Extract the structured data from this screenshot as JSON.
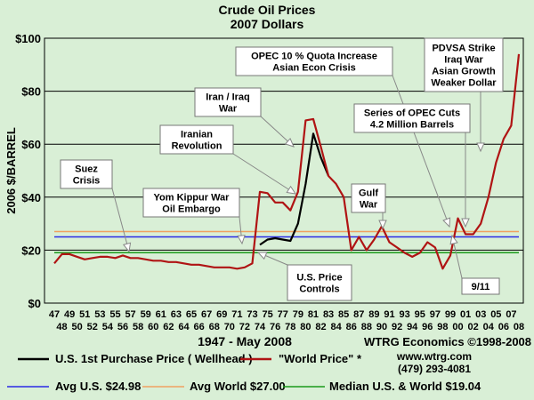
{
  "chart_data": {
    "type": "line",
    "title": "Crude Oil Prices",
    "subtitle": "2007 Dollars",
    "ylabel": "2006 $/BARREL",
    "xlabel": "1947 - May 2008",
    "ylim": [
      0,
      100
    ],
    "xlim": [
      1947,
      2008
    ],
    "grid": true,
    "y_ticks": [
      "$0",
      "$20",
      "$40",
      "$60",
      "$80",
      "$100"
    ],
    "y_tick_values": [
      0,
      20,
      40,
      60,
      80,
      100
    ],
    "x_ticks_top": [
      "47",
      "49",
      "51",
      "53",
      "55",
      "57",
      "59",
      "61",
      "63",
      "65",
      "67",
      "69",
      "71",
      "73",
      "75",
      "77",
      "79",
      "81",
      "83",
      "85",
      "87",
      "89",
      "91",
      "93",
      "95",
      "97",
      "99",
      "01",
      "03",
      "05",
      "07"
    ],
    "x_ticks_bottom": [
      "48",
      "50",
      "52",
      "54",
      "56",
      "58",
      "60",
      "62",
      "64",
      "66",
      "68",
      "70",
      "72",
      "74",
      "76",
      "78",
      "80",
      "82",
      "84",
      "86",
      "88",
      "90",
      "92",
      "94",
      "96",
      "98",
      "00",
      "02",
      "04",
      "06",
      "08"
    ],
    "series": [
      {
        "name": "U.S. 1st Purchase Price ( Wellhead )",
        "color": "#000000",
        "x": [
          1974,
          1975,
          1976,
          1977,
          1978,
          1979,
          1980,
          1981,
          1982,
          1983
        ],
        "y": [
          22,
          24,
          24.5,
          24,
          23.5,
          30,
          45,
          64,
          55,
          48
        ]
      },
      {
        "name": "\"World Price\" *",
        "color": "#b01414",
        "x": [
          1947,
          1948,
          1949,
          1950,
          1951,
          1952,
          1953,
          1954,
          1955,
          1956,
          1957,
          1958,
          1959,
          1960,
          1961,
          1962,
          1963,
          1964,
          1965,
          1966,
          1967,
          1968,
          1969,
          1970,
          1971,
          1972,
          1973,
          1974,
          1975,
          1976,
          1977,
          1978,
          1979,
          1980,
          1981,
          1982,
          1983,
          1984,
          1985,
          1986,
          1987,
          1988,
          1989,
          1990,
          1991,
          1992,
          1993,
          1994,
          1995,
          1996,
          1997,
          1998,
          1999,
          2000,
          2001,
          2002,
          2003,
          2004,
          2005,
          2006,
          2007,
          2008
        ],
        "y": [
          15,
          18.5,
          18.5,
          17.5,
          16.5,
          17,
          17.5,
          17.5,
          17,
          18,
          17,
          17,
          16.5,
          16,
          16,
          15.5,
          15.5,
          15,
          14.5,
          14.5,
          14,
          13.5,
          13.5,
          13.5,
          13,
          13.5,
          15,
          42,
          41.5,
          38,
          38,
          35,
          42,
          69,
          69.5,
          59,
          48,
          45,
          40,
          20,
          25,
          20,
          24,
          29,
          23,
          21,
          19,
          17.5,
          19,
          23,
          21,
          13,
          18,
          32,
          26,
          26,
          30,
          40,
          53,
          62,
          67,
          94
        ]
      }
    ],
    "reference_lines": [
      {
        "name": "Avg U.S. $24.98",
        "value": 24.98,
        "color": "#2a2ae6"
      },
      {
        "name": "Avg World $27.00",
        "value": 27.0,
        "color": "#f0a060"
      },
      {
        "name": "Median U.S. & World  $19.04",
        "value": 19.04,
        "color": "#1a9a1a"
      }
    ],
    "annotations": [
      {
        "lines": [
          "Suez",
          "Crisis"
        ],
        "year": 1957
      },
      {
        "lines": [
          "Yom Kippur War",
          "Oil Embargo"
        ],
        "year": 1973
      },
      {
        "lines": [
          "Iranian",
          "Revolution"
        ],
        "year": 1979
      },
      {
        "lines": [
          "Iran / Iraq",
          "War"
        ],
        "year": 1980
      },
      {
        "lines": [
          "OPEC 10 % Quota Increase",
          "Asian Econ Crisis"
        ],
        "year": 1998
      },
      {
        "lines": [
          "U.S. Price",
          "Controls"
        ],
        "year": 1975
      },
      {
        "lines": [
          "Gulf",
          "War"
        ],
        "year": 1990
      },
      {
        "lines": [
          "Series of OPEC Cuts",
          "4.2 Million Barrels"
        ],
        "year": 1999
      },
      {
        "lines": [
          "PDVSA Strike",
          "Iraq War",
          "Asian Growth",
          "Weaker Dollar"
        ],
        "year": 2003
      },
      {
        "lines": [
          "9/11"
        ],
        "year": 2001
      }
    ],
    "footer": {
      "credit": "WTRG Economics  ©1998-2008",
      "url": "www.wtrg.com",
      "phone": "(479) 293-4081"
    }
  }
}
